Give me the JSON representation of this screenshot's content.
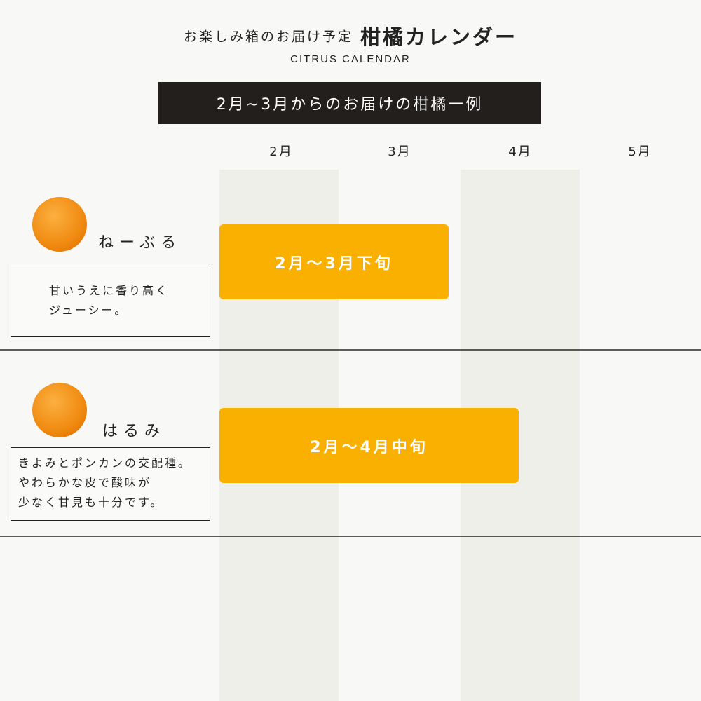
{
  "header": {
    "subtitle": "お楽しみ箱のお届け予定",
    "title": "柑橘カレンダー",
    "english": "CITRUS CALENDAR"
  },
  "banner": "2月~3月からのお届けの柑橘一例",
  "months": [
    "2月",
    "3月",
    "4月",
    "5月"
  ],
  "colors": {
    "bar": "#f9b000",
    "banner": "#231f1c",
    "shaded_column": "#efefea"
  },
  "items": [
    {
      "name": "ねーぶる",
      "description": [
        "甘いうえに香り高く",
        "ジューシー。"
      ],
      "period": "2月～3月下旬",
      "icon": "orange-photo"
    },
    {
      "name": "はるみ",
      "description": [
        "きよみとポンカンの交配種。",
        "やわらかな皮で酸味が",
        "少なく甘見も十分です。"
      ],
      "period": "2月～4月中旬",
      "icon": "orange-photo"
    }
  ]
}
